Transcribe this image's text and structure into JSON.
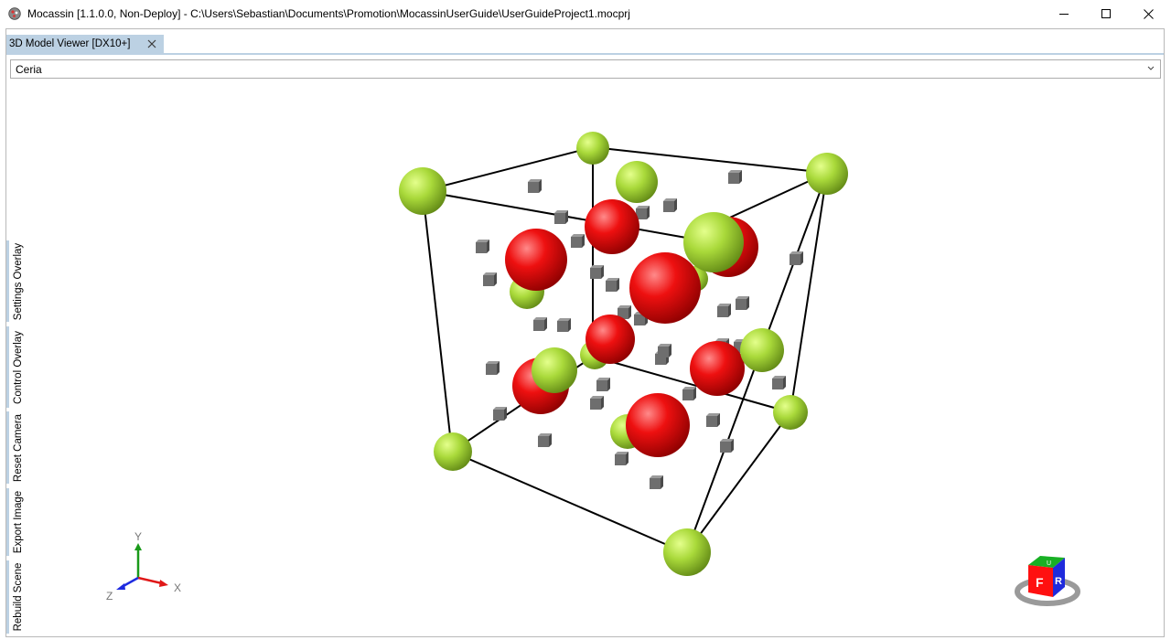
{
  "window": {
    "title": "Mocassin [1.1.0.0, Non-Deploy] - C:\\Users\\Sebastian\\Documents\\Promotion\\MocassinUserGuide\\UserGuideProject1.mocprj",
    "icon": "mocassin-app-icon",
    "controls": [
      "minimize-icon",
      "maximize-icon",
      "close-icon"
    ]
  },
  "tab": {
    "label": "3D Model Viewer [DX10+]",
    "close_icon": "close-icon"
  },
  "model_select": {
    "value": "Ceria"
  },
  "side_tabs": [
    "Settings Overlay",
    "Control Overlay",
    "Reset Camera",
    "Export Image",
    "Rebuild Scene"
  ],
  "axes": {
    "x": "X",
    "y": "Y",
    "z": "Z",
    "x_color": "#ff2020",
    "y_color": "#1a9a1a",
    "z_color": "#1e2be0"
  },
  "view_cube": {
    "front": "F",
    "right": "R",
    "top": "U",
    "front_color": "#ff1010",
    "right_color": "#1f2bdc",
    "top_color": "#18b024"
  },
  "colors": {
    "cation": "#a9d93a",
    "anion": "#ee1010",
    "vacancy": "#6e6e6e",
    "tab_accent": "#bcd1e3"
  }
}
